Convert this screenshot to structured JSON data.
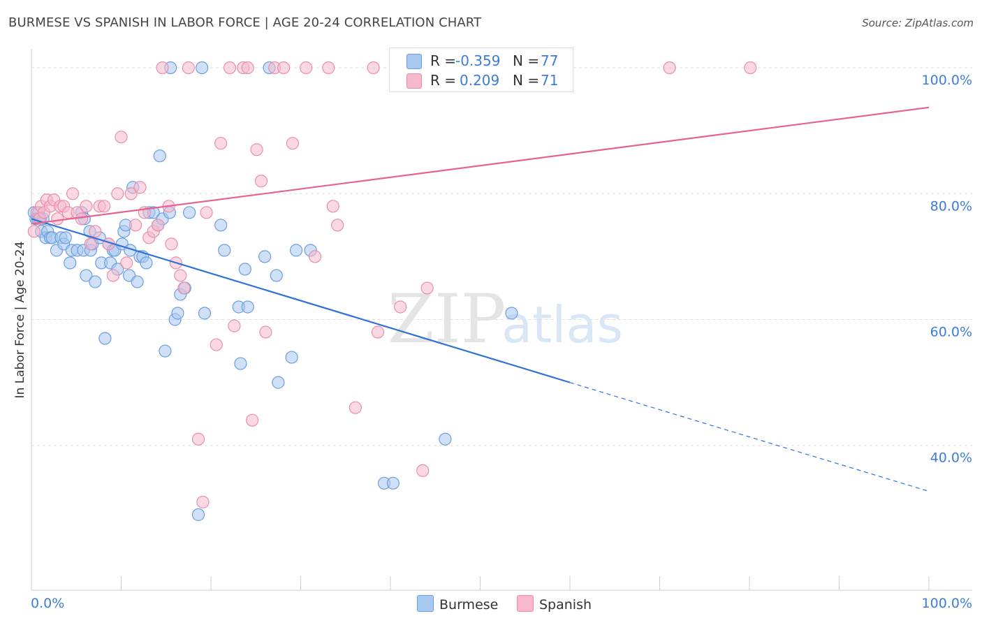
{
  "title": "BURMESE VS SPANISH IN LABOR FORCE | AGE 20-24 CORRELATION CHART",
  "source": "Source: ZipAtlas.com",
  "watermark": {
    "zip": "ZIP",
    "atlas": "atlas"
  },
  "legend": {
    "rows": [
      {
        "r_label": "R =",
        "r_value": "-0.359",
        "n_label": "N =",
        "n_value": "77"
      },
      {
        "r_label": "R =",
        "r_value": "0.209",
        "n_label": "N =",
        "n_value": "71"
      }
    ]
  },
  "bottom_legend": {
    "burmese": "Burmese",
    "spanish": "Spanish"
  },
  "colors": {
    "burmese_fill": "#a9c8f0",
    "burmese_stroke": "#6a9ee0",
    "burmese_line": "#2f72d6",
    "spanish_fill": "#f6b9cc",
    "spanish_stroke": "#ea8eab",
    "spanish_line": "#e4638f",
    "grid": "#dddddd",
    "tick_text": "#3b7dd8"
  },
  "chart_data": {
    "type": "scatter",
    "title": "BURMESE VS SPANISH IN LABOR FORCE | AGE 20-24 CORRELATION CHART",
    "xlabel": "",
    "ylabel": "In Labor Force | Age 20-24",
    "xlim": [
      0,
      100
    ],
    "ylim": [
      17,
      103
    ],
    "x_tick_labels": [
      "0.0%",
      "100.0%"
    ],
    "y_ticks": [
      40,
      60,
      80,
      100
    ],
    "y_tick_labels": [
      "40.0%",
      "60.0%",
      "80.0%",
      "100.0%"
    ],
    "grid": true,
    "legend_position": "top-center",
    "series": [
      {
        "name": "Burmese",
        "R": -0.359,
        "N": 77,
        "trend": {
          "x0": 0,
          "y0": 76.0,
          "x1": 60,
          "y1": 50.0,
          "dashed_to_x": 100,
          "dashed_to_y": 32.7
        },
        "points": [
          [
            0.3,
            77
          ],
          [
            0.5,
            76
          ],
          [
            0.7,
            76
          ],
          [
            0.8,
            77
          ],
          [
            1.0,
            76
          ],
          [
            1.1,
            74
          ],
          [
            1.3,
            76
          ],
          [
            1.6,
            73
          ],
          [
            1.8,
            74
          ],
          [
            2.1,
            73
          ],
          [
            2.3,
            73
          ],
          [
            2.8,
            71
          ],
          [
            3.3,
            73
          ],
          [
            3.6,
            72
          ],
          [
            3.8,
            73
          ],
          [
            4.3,
            69
          ],
          [
            4.5,
            71
          ],
          [
            5.1,
            71
          ],
          [
            5.6,
            77
          ],
          [
            5.9,
            76
          ],
          [
            5.8,
            71
          ],
          [
            6.1,
            67
          ],
          [
            6.5,
            74
          ],
          [
            6.6,
            71
          ],
          [
            6.8,
            72
          ],
          [
            7.1,
            66
          ],
          [
            7.6,
            73
          ],
          [
            7.8,
            69
          ],
          [
            8.2,
            57
          ],
          [
            8.6,
            72
          ],
          [
            8.8,
            69
          ],
          [
            9.1,
            71
          ],
          [
            9.3,
            71
          ],
          [
            9.6,
            68
          ],
          [
            10.1,
            72
          ],
          [
            10.3,
            74
          ],
          [
            10.5,
            75
          ],
          [
            10.9,
            67
          ],
          [
            11.0,
            71
          ],
          [
            11.3,
            81
          ],
          [
            11.8,
            66
          ],
          [
            12.1,
            70
          ],
          [
            12.4,
            70
          ],
          [
            12.8,
            69
          ],
          [
            13.1,
            77
          ],
          [
            13.6,
            77
          ],
          [
            14.1,
            75
          ],
          [
            14.3,
            86
          ],
          [
            14.6,
            76
          ],
          [
            14.9,
            55
          ],
          [
            15.4,
            77
          ],
          [
            16.0,
            60
          ],
          [
            16.3,
            61
          ],
          [
            16.6,
            64
          ],
          [
            17.1,
            65
          ],
          [
            17.6,
            77
          ],
          [
            18.6,
            29
          ],
          [
            19.3,
            61
          ],
          [
            21.1,
            75
          ],
          [
            21.5,
            71
          ],
          [
            23.1,
            62
          ],
          [
            23.3,
            53
          ],
          [
            23.8,
            68
          ],
          [
            24.1,
            62
          ],
          [
            26.0,
            70
          ],
          [
            27.3,
            67
          ],
          [
            27.5,
            50
          ],
          [
            29.0,
            54
          ],
          [
            29.5,
            71
          ],
          [
            31.1,
            71
          ],
          [
            39.3,
            34
          ],
          [
            40.3,
            34
          ],
          [
            46.1,
            41
          ],
          [
            53.5,
            61
          ],
          [
            15.5,
            100
          ],
          [
            19.0,
            100
          ],
          [
            26.5,
            100
          ]
        ]
      },
      {
        "name": "Spanish",
        "R": 0.209,
        "N": 71,
        "trend": {
          "x0": 0,
          "y0": 75.2,
          "x1": 100,
          "y1": 93.7
        },
        "points": [
          [
            0.3,
            74
          ],
          [
            0.6,
            77
          ],
          [
            0.9,
            76
          ],
          [
            1.1,
            78
          ],
          [
            1.4,
            77
          ],
          [
            1.7,
            79
          ],
          [
            2.1,
            78
          ],
          [
            2.5,
            79
          ],
          [
            2.9,
            76
          ],
          [
            3.2,
            78
          ],
          [
            3.6,
            78
          ],
          [
            4.1,
            77
          ],
          [
            4.6,
            80
          ],
          [
            5.1,
            77
          ],
          [
            5.6,
            76
          ],
          [
            6.1,
            78
          ],
          [
            6.6,
            72
          ],
          [
            7.1,
            74
          ],
          [
            7.6,
            78
          ],
          [
            8.1,
            78
          ],
          [
            8.6,
            72
          ],
          [
            9.1,
            67
          ],
          [
            9.6,
            80
          ],
          [
            10.0,
            89
          ],
          [
            10.6,
            69
          ],
          [
            11.1,
            80
          ],
          [
            11.6,
            75
          ],
          [
            12.1,
            81
          ],
          [
            12.6,
            77
          ],
          [
            13.1,
            73
          ],
          [
            13.6,
            74
          ],
          [
            14.1,
            75
          ],
          [
            14.6,
            100
          ],
          [
            15.3,
            78
          ],
          [
            15.6,
            72
          ],
          [
            16.1,
            69
          ],
          [
            16.6,
            67
          ],
          [
            17.0,
            65
          ],
          [
            17.5,
            100
          ],
          [
            18.6,
            41
          ],
          [
            19.1,
            31
          ],
          [
            19.5,
            77
          ],
          [
            20.6,
            56
          ],
          [
            21.1,
            88
          ],
          [
            22.1,
            100
          ],
          [
            22.6,
            59
          ],
          [
            23.6,
            100
          ],
          [
            24.1,
            100
          ],
          [
            24.6,
            44
          ],
          [
            25.1,
            87
          ],
          [
            25.6,
            82
          ],
          [
            26.1,
            58
          ],
          [
            27.1,
            100
          ],
          [
            28.1,
            100
          ],
          [
            29.1,
            88
          ],
          [
            30.6,
            100
          ],
          [
            31.6,
            70
          ],
          [
            33.1,
            100
          ],
          [
            33.6,
            78
          ],
          [
            34.1,
            75
          ],
          [
            36.1,
            46
          ],
          [
            38.1,
            100
          ],
          [
            38.6,
            58
          ],
          [
            41.1,
            62
          ],
          [
            42.1,
            100
          ],
          [
            43.6,
            36
          ],
          [
            44.1,
            65
          ],
          [
            47.1,
            100
          ],
          [
            50.1,
            100
          ],
          [
            71.1,
            100
          ],
          [
            80.1,
            100
          ]
        ]
      }
    ]
  }
}
